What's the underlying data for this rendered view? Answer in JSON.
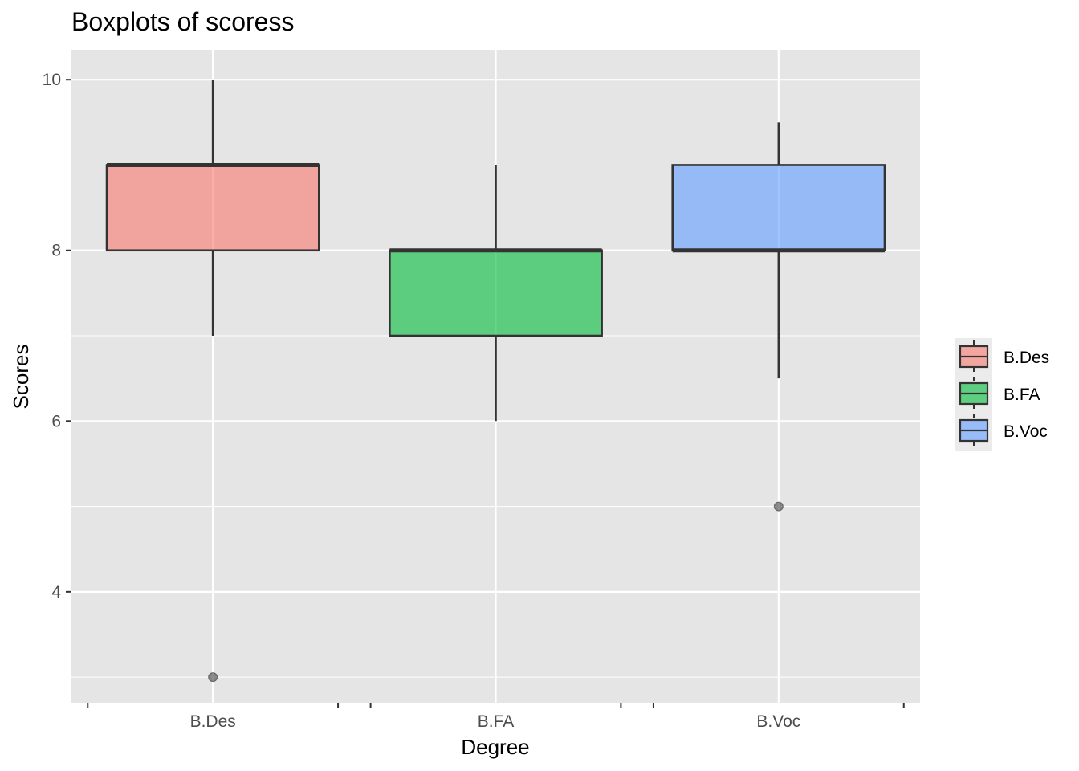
{
  "chart_data": {
    "type": "boxplot",
    "title": "Boxplots of scoress",
    "xlabel": "Degree",
    "ylabel": "Scores",
    "categories": [
      "B.Des",
      "B.FA",
      "B.Voc"
    ],
    "ylim": [
      2.7,
      10.35
    ],
    "y_ticks": [
      "4",
      "6",
      "8",
      "10"
    ],
    "boxes": [
      {
        "name": "B.Des",
        "min": 7,
        "q1": 8,
        "median": 9,
        "q3": 9,
        "max": 10,
        "outliers": [
          3
        ],
        "color": "#F8766D"
      },
      {
        "name": "B.FA",
        "min": 6,
        "q1": 7,
        "median": 8,
        "q3": 8,
        "max": 9,
        "outliers": [],
        "color": "#00BA38"
      },
      {
        "name": "B.Voc",
        "min": 6.5,
        "q1": 8,
        "median": 8,
        "q3": 9,
        "max": 9.5,
        "outliers": [
          5
        ],
        "color": "#619CFF"
      }
    ],
    "legend": {
      "position": "right",
      "entries": [
        "B.Des",
        "B.FA",
        "B.Voc"
      ]
    },
    "grid": true,
    "panel_background": "#E5E5E5"
  }
}
